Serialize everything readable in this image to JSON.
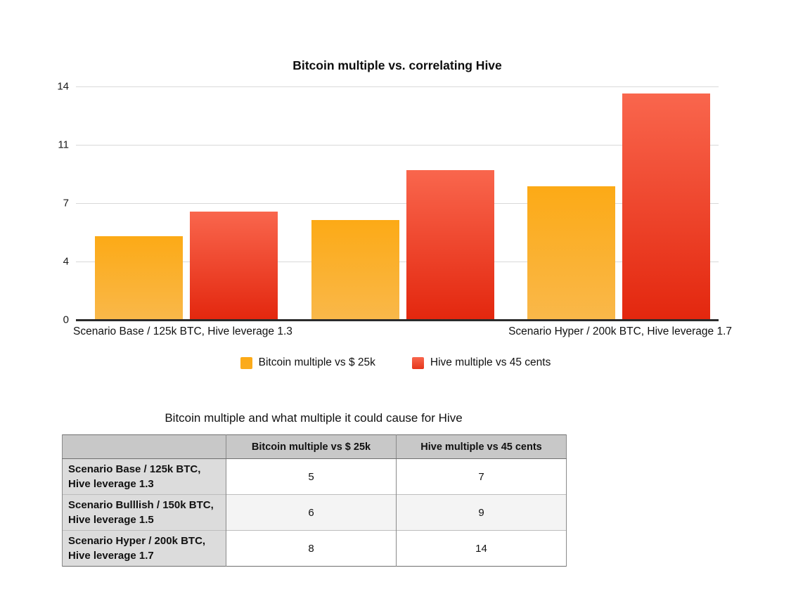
{
  "chart": {
    "x_labels": {
      "left": "Scenario Base / 125k BTC, Hive leverage 1.3",
      "right": "Scenario Hyper / 200k BTC, Hive leverage 1.7"
    }
  },
  "chart_data": {
    "type": "bar",
    "title": "Bitcoin multiple vs. correlating Hive",
    "categories": [
      "Scenario Base / 125k BTC, Hive leverage 1.3",
      "Scenario Bulllish / 150k BTC, Hive leverage 1.5",
      "Scenario Hyper / 200k BTC, Hive leverage 1.7"
    ],
    "series": [
      {
        "name": "Bitcoin multiple vs $ 25k",
        "values": [
          5,
          6,
          8
        ],
        "color_top": "#FCAA16",
        "color_bottom": "#F9B84A",
        "swatch_color": "#FAAB1E"
      },
      {
        "name": "Hive multiple vs 45 cents",
        "values": [
          6.5,
          9,
          13.6
        ],
        "color_top": "#F9664D",
        "color_bottom": "#E3270E",
        "swatch_color": "#E5361B"
      }
    ],
    "ylim": [
      0,
      14
    ],
    "y_ticks": [
      {
        "label": "0",
        "value": 0
      },
      {
        "label": "4",
        "value": 3.5
      },
      {
        "label": "7",
        "value": 7
      },
      {
        "label": "11",
        "value": 10.5
      },
      {
        "label": "14",
        "value": 14
      }
    ],
    "x_axis_visible_labels": [
      "Scenario Base / 125k BTC, Hive leverage 1.3",
      "Scenario Hyper / 200k BTC, Hive leverage 1.7"
    ],
    "grid": true,
    "legend_position": "bottom"
  },
  "table": {
    "title": "Bitcoin multiple and what multiple it could cause for Hive",
    "columns": [
      "",
      "Bitcoin multiple vs $ 25k",
      "Hive multiple vs 45 cents"
    ],
    "rows": [
      {
        "label_lines": [
          "Scenario Base / 125k BTC,",
          "Hive leverage 1.3"
        ],
        "bitcoin_multiple": "5",
        "hive_multiple": "7"
      },
      {
        "label_lines": [
          "Scenario Bulllish / 150k BTC,",
          "Hive leverage 1.5"
        ],
        "bitcoin_multiple": "6",
        "hive_multiple": "9"
      },
      {
        "label_lines": [
          "Scenario Hyper / 200k BTC,",
          "Hive leverage 1.7"
        ],
        "bitcoin_multiple": "8",
        "hive_multiple": "14"
      }
    ]
  },
  "colors": {
    "gridline": "#d9d9d9",
    "axis_line": "#2b2b2b",
    "table_header_bg": "#c8c8c8",
    "table_label_bg": "#dcdcdc",
    "table_alt_row_bg": "#f4f4f4"
  }
}
